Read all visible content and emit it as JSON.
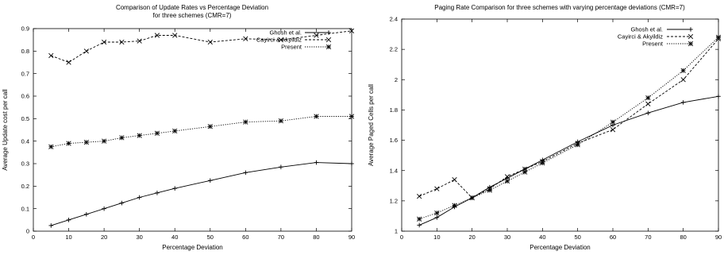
{
  "chart_data": [
    {
      "type": "line",
      "title": "Comparison of Update Rates vs Percentage Deviation",
      "subtitle": "for three schemes (CMR=7)",
      "xlabel": "Percentage Deviation",
      "ylabel": "Average Update cost per call",
      "xlim": [
        0,
        90
      ],
      "ylim": [
        0,
        0.9
      ],
      "xticks": [
        "0",
        "10",
        "20",
        "30",
        "40",
        "50",
        "60",
        "70",
        "80",
        "90"
      ],
      "yticks": [
        "0",
        "0.1",
        "0.2",
        "0.3",
        "0.4",
        "0.5",
        "0.6",
        "0.7",
        "0.8",
        "0.9"
      ],
      "grid": false,
      "legend": "top-right",
      "x": [
        5,
        10,
        15,
        20,
        25,
        30,
        35,
        40,
        50,
        60,
        70,
        80,
        90
      ],
      "series": [
        {
          "name": "Ghosh et al.",
          "marker": "plus",
          "dash": "solid",
          "values": [
            0.025,
            0.05,
            0.075,
            0.1,
            0.125,
            0.15,
            0.17,
            0.19,
            0.225,
            0.26,
            0.285,
            0.305,
            0.3
          ]
        },
        {
          "name": "Cayirci & Akyildiz",
          "marker": "cross",
          "dash": "dashed",
          "values": [
            0.78,
            0.75,
            0.8,
            0.84,
            0.84,
            0.845,
            0.87,
            0.87,
            0.84,
            0.855,
            0.85,
            0.87,
            0.89
          ]
        },
        {
          "name": "Present",
          "marker": "star",
          "dash": "dotted",
          "values": [
            0.375,
            0.39,
            0.395,
            0.4,
            0.415,
            0.425,
            0.435,
            0.445,
            0.465,
            0.485,
            0.49,
            0.51,
            0.51
          ]
        }
      ]
    },
    {
      "type": "line",
      "title": "Paging Rate Comparison for three schemes with varying percentage deviations (CMR=7)",
      "xlabel": "Percentage Deviation",
      "ylabel": "Average Paged Cells per call",
      "xlim": [
        0,
        90
      ],
      "ylim": [
        1,
        2.4
      ],
      "xticks": [
        "0",
        "10",
        "20",
        "30",
        "40",
        "50",
        "60",
        "70",
        "80",
        "90"
      ],
      "yticks": [
        "1",
        "1.2",
        "1.4",
        "1.6",
        "1.8",
        "2",
        "2.2",
        "2.4"
      ],
      "grid": false,
      "legend": "top-right",
      "x": [
        5,
        10,
        15,
        20,
        25,
        30,
        35,
        40,
        50,
        60,
        70,
        80,
        90
      ],
      "series": [
        {
          "name": "Ghosh et al.",
          "marker": "plus",
          "dash": "solid",
          "values": [
            1.04,
            1.09,
            1.16,
            1.22,
            1.29,
            1.35,
            1.41,
            1.47,
            1.59,
            1.7,
            1.78,
            1.85,
            1.89
          ]
        },
        {
          "name": "Cayirci & Akyildiz",
          "marker": "cross",
          "dash": "dashed",
          "values": [
            1.23,
            1.28,
            1.34,
            1.22,
            1.28,
            1.36,
            1.41,
            1.46,
            1.58,
            1.67,
            1.84,
            2.0,
            2.27
          ]
        },
        {
          "name": "Present",
          "marker": "star",
          "dash": "dotted",
          "values": [
            1.08,
            1.12,
            1.17,
            1.22,
            1.27,
            1.33,
            1.39,
            1.45,
            1.57,
            1.72,
            1.88,
            2.06,
            2.28
          ]
        }
      ]
    }
  ]
}
